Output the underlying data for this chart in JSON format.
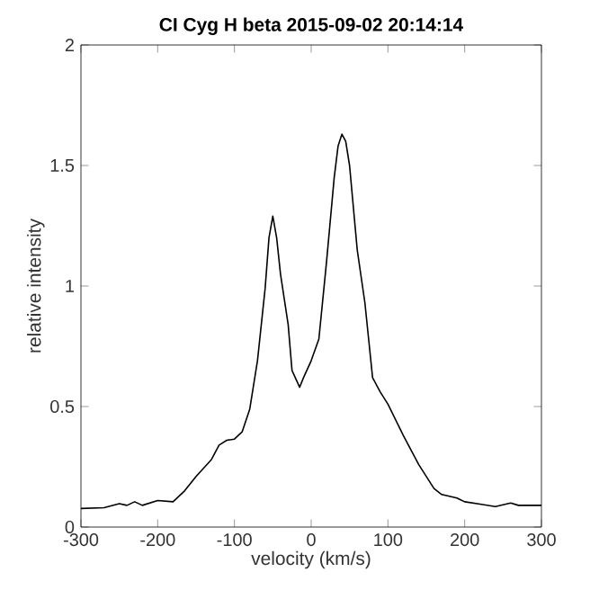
{
  "chart_data": {
    "type": "line",
    "title": "**CI Cyg   H beta    2015-09-02    20:14:14**",
    "xlabel": "velocity (km/s)",
    "ylabel": "relative intensity",
    "x": [
      -300,
      -270,
      -250,
      -240,
      -230,
      -220,
      -200,
      -180,
      -165,
      -150,
      -130,
      -120,
      -110,
      -100,
      -90,
      -80,
      -70,
      -60,
      -55,
      -50,
      -45,
      -40,
      -30,
      -25,
      -15,
      -10,
      0,
      10,
      20,
      30,
      35,
      40,
      45,
      50,
      60,
      70,
      80,
      90,
      100,
      120,
      140,
      160,
      170,
      190,
      200,
      220,
      240,
      260,
      270,
      300
    ],
    "series": [
      {
        "color": "#000000",
        "values": [
          0.077,
          0.08,
          0.097,
          0.09,
          0.105,
          0.09,
          0.11,
          0.105,
          0.15,
          0.21,
          0.28,
          0.34,
          0.36,
          0.365,
          0.395,
          0.49,
          0.69,
          0.99,
          1.2,
          1.29,
          1.2,
          1.05,
          0.84,
          0.65,
          0.58,
          0.62,
          0.69,
          0.78,
          1.1,
          1.45,
          1.58,
          1.63,
          1.6,
          1.5,
          1.15,
          0.93,
          0.62,
          0.56,
          0.51,
          0.38,
          0.26,
          0.16,
          0.135,
          0.12,
          0.105,
          0.095,
          0.085,
          0.1,
          0.09,
          0.09
        ]
      }
    ],
    "xlim": [
      -300,
      300
    ],
    "xticks": [
      -300,
      -200,
      -100,
      0,
      100,
      200,
      300
    ],
    "ylim": [
      0,
      2
    ],
    "yticks": [
      0,
      0.5,
      1,
      1.5,
      2
    ],
    "grid": false,
    "marker": "none",
    "line_style": "solid"
  }
}
